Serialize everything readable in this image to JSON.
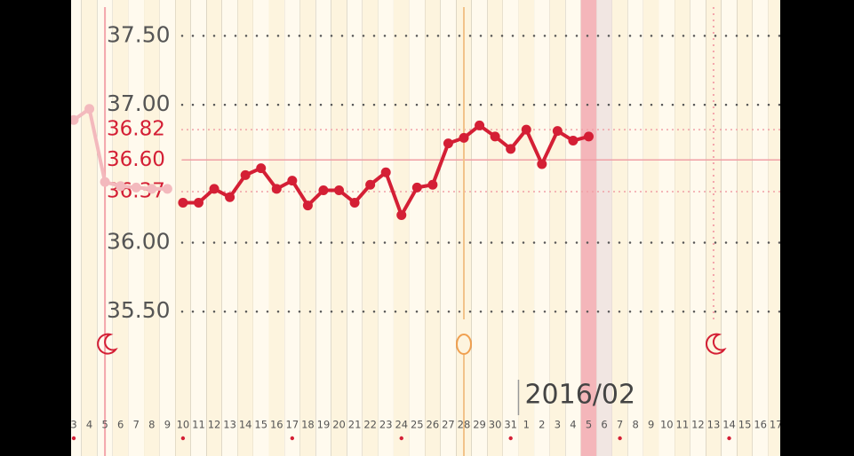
{
  "chart_data": {
    "type": "line",
    "x": [
      "3",
      "4",
      "5",
      "6",
      "7",
      "8",
      "9",
      "10",
      "11",
      "12",
      "13",
      "14",
      "15",
      "16",
      "17",
      "18",
      "19",
      "20",
      "21",
      "22",
      "23",
      "24",
      "25",
      "26",
      "27",
      "28",
      "29",
      "30",
      "31",
      "1",
      "2",
      "3",
      "4",
      "5",
      "6",
      "7",
      "8",
      "9",
      "10",
      "11",
      "12",
      "13",
      "14",
      "15",
      "16",
      "17"
    ],
    "series": [
      {
        "color": "#f3b9bd",
        "values": [
          36.89,
          36.97,
          36.44,
          36.41,
          36.4,
          36.39,
          36.39,
          null,
          null,
          null,
          null,
          null,
          null,
          null,
          null,
          null,
          null,
          null,
          null,
          null,
          null,
          null,
          null,
          null,
          null,
          null,
          null,
          null,
          null,
          null,
          null,
          null,
          null,
          null,
          null,
          null,
          null,
          null,
          null,
          null,
          null,
          null,
          null,
          null,
          null,
          null
        ]
      },
      {
        "color": "#d41f35",
        "values": [
          null,
          null,
          null,
          null,
          null,
          null,
          null,
          36.29,
          36.29,
          36.39,
          36.33,
          36.49,
          36.54,
          36.39,
          36.45,
          36.27,
          36.38,
          36.38,
          36.29,
          36.42,
          36.51,
          36.2,
          36.4,
          36.42,
          36.72,
          36.76,
          36.85,
          36.77,
          36.68,
          36.82,
          36.57,
          36.81,
          36.74,
          36.77,
          null,
          null,
          null,
          null,
          null,
          null,
          null,
          null,
          null,
          null,
          null,
          null
        ]
      }
    ],
    "ylim": [
      35.45,
      37.76
    ],
    "yticks": [
      {
        "value": 35.5,
        "label": "35.50"
      },
      {
        "value": 36,
        "label": "36.00"
      },
      {
        "value": 37,
        "label": "37.00"
      },
      {
        "value": 37.5,
        "label": "37.50"
      }
    ],
    "reference_lines": [
      {
        "value": 36.82,
        "label": "36.82",
        "style": "dotted"
      },
      {
        "value": 36.6,
        "label": "36.60",
        "style": "solid"
      },
      {
        "value": 36.37,
        "label": "36.37",
        "style": "dotted"
      }
    ],
    "month_label": "2016/02",
    "grid": true,
    "period_days": [
      2,
      41
    ],
    "ovulation_day": 25,
    "today": 33,
    "dotted_days": [
      0,
      7,
      14,
      21,
      28,
      35,
      42
    ]
  }
}
